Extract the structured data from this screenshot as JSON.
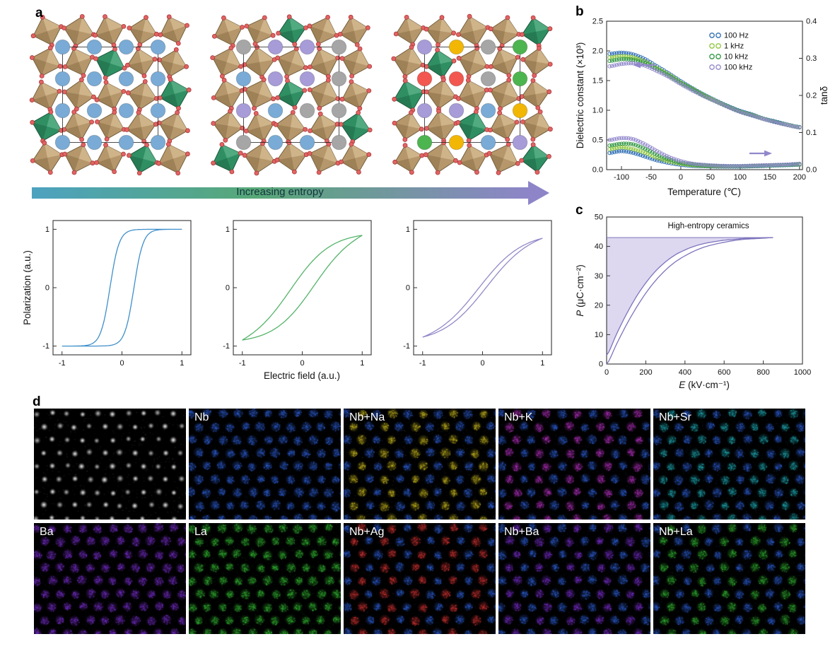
{
  "panel_a": {
    "label": "a",
    "arrow": {
      "label": "Increasing entropy",
      "gradient_start": "#4da2c0",
      "gradient_mid": "#57a877",
      "gradient_end": "#8d85c8"
    },
    "octahedron": {
      "body": "#b5976b",
      "light": "#d6bc92",
      "dark": "#8a6f45",
      "edge": "#6e5836",
      "green_body": "#2f8f63",
      "green_light": "#5bb088",
      "green_dark": "#1f6a47",
      "green_edge": "#174f35",
      "oxygen": "#e26363",
      "oxygen_edge": "#a83939",
      "cell_line": "#222222"
    },
    "structures": [
      {
        "name": "low-entropy",
        "cation_colors": [
          "#79abd6"
        ],
        "green_sites": [
          [
            1,
            2
          ],
          [
            3,
            0
          ],
          [
            2,
            4
          ],
          [
            4,
            3
          ]
        ]
      },
      {
        "name": "medium-entropy",
        "cation_colors": [
          "#79abd6",
          "#a79bd8",
          "#a6a6a6"
        ],
        "green_sites": [
          [
            0,
            2
          ],
          [
            2,
            2
          ],
          [
            4,
            0
          ],
          [
            3,
            4
          ]
        ]
      },
      {
        "name": "high-entropy",
        "cation_colors": [
          "#79abd6",
          "#a79bd8",
          "#a6a6a6",
          "#4db54f",
          "#f2584f",
          "#f2b705"
        ],
        "green_sites": [
          [
            1,
            1
          ],
          [
            0,
            4
          ],
          [
            3,
            2
          ],
          [
            4,
            4
          ],
          [
            2,
            0
          ]
        ]
      }
    ]
  },
  "panel_b": {
    "label": "b"
  },
  "panel_c": {
    "label": "c"
  },
  "panel_d": {
    "label": "d",
    "maps": [
      {
        "label": "",
        "type": "stem"
      },
      {
        "label": "Nb",
        "primary": "#2e5fd6"
      },
      {
        "label": "Nb+Na",
        "primary": "#2e5fd6",
        "secondary": "#c9b91f"
      },
      {
        "label": "Nb+K",
        "primary": "#2e5fd6",
        "secondary": "#b832c4"
      },
      {
        "label": "Nb+Sr",
        "primary": "#2e5fd6",
        "secondary": "#1faab4"
      },
      {
        "label": "Ba",
        "primary": "#7a2fd0"
      },
      {
        "label": "La",
        "primary": "#33b833"
      },
      {
        "label": "Nb+Ag",
        "primary": "#2e5fd6",
        "secondary": "#d63434"
      },
      {
        "label": "Nb+Ba",
        "primary": "#2e5fd6",
        "secondary": "#7a2fd0"
      },
      {
        "label": "Nb+La",
        "primary": "#2e5fd6",
        "secondary": "#33b833"
      }
    ]
  },
  "chart_data": [
    {
      "type": "line",
      "subtype": "hysteresis-loop",
      "name": "low-entropy P-E loop",
      "xlabel": "Electric field (a.u.)",
      "ylabel": "Polarization (a.u.)",
      "xlim": [
        -1.15,
        1.15
      ],
      "ylim": [
        -1.15,
        1.15
      ],
      "xticks": [
        "-1",
        "0",
        "1"
      ],
      "yticks": [
        "-1",
        "0",
        "1"
      ],
      "color": "#3f8fca",
      "model": {
        "Ps": 1.0,
        "k": 6.5,
        "Ec": 0.2
      }
    },
    {
      "type": "line",
      "subtype": "hysteresis-loop",
      "name": "medium-entropy P-E loop",
      "xlabel": "Electric field (a.u.)",
      "ylabel": "Polarization (a.u.)",
      "xlim": [
        -1.15,
        1.15
      ],
      "ylim": [
        -1.15,
        1.15
      ],
      "xticks": [
        "-1",
        "0",
        "1"
      ],
      "yticks": [
        "-1",
        "0",
        "1"
      ],
      "color": "#55b36a",
      "model": {
        "Ps": 0.95,
        "k": 1.5,
        "Ec": 0.18
      }
    },
    {
      "type": "line",
      "subtype": "hysteresis-loop",
      "name": "high-entropy P-E loop",
      "xlabel": "Electric field (a.u.)",
      "ylabel": "Polarization (a.u.)",
      "xlim": [
        -1.15,
        1.15
      ],
      "ylim": [
        -1.15,
        1.15
      ],
      "xticks": [
        "-1",
        "0",
        "1"
      ],
      "yticks": [
        "-1",
        "0",
        "1"
      ],
      "color": "#9489c9",
      "model": {
        "Ps": 0.95,
        "k": 1.35,
        "Ec": 0.06
      }
    },
    {
      "type": "line",
      "name": "dielectric-vs-temperature",
      "xlabel": "Temperature (℃)",
      "ylabel_left": "Dielectric constant (×10³)",
      "ylabel_right": "tanδ",
      "xlim": [
        -125,
        205
      ],
      "xticks": [
        "-100",
        "-50",
        "0",
        "50",
        "100",
        "150",
        "200"
      ],
      "ylim_left": [
        0,
        2.5
      ],
      "yticks_left": [
        "0.0",
        "0.5",
        "1.0",
        "1.5",
        "2.0",
        "2.5"
      ],
      "ylim_right": [
        0,
        0.4
      ],
      "yticks_right": [
        "0.0",
        "0.1",
        "0.2",
        "0.3",
        "0.4"
      ],
      "legend_position": "top-right",
      "arrow_color": "#9188cb",
      "temperatures": [
        -120,
        -100,
        -80,
        -60,
        -40,
        -20,
        0,
        20,
        40,
        60,
        80,
        100,
        120,
        140,
        160,
        180,
        200
      ],
      "series": [
        {
          "name": "100 Hz",
          "color": "#2e6db4",
          "dielectric": [
            1.95,
            1.97,
            1.94,
            1.86,
            1.74,
            1.62,
            1.49,
            1.37,
            1.26,
            1.16,
            1.07,
            0.99,
            0.93,
            0.86,
            0.81,
            0.76,
            0.72
          ],
          "tand": [
            0.045,
            0.05,
            0.045,
            0.035,
            0.025,
            0.018,
            0.013,
            0.01,
            0.009,
            0.008,
            0.008,
            0.008,
            0.009,
            0.01,
            0.011,
            0.012,
            0.013
          ]
        },
        {
          "name": "1 kHz",
          "color": "#8fc63f",
          "dielectric": [
            1.89,
            1.91,
            1.89,
            1.82,
            1.71,
            1.6,
            1.47,
            1.36,
            1.25,
            1.15,
            1.06,
            0.98,
            0.92,
            0.855,
            0.8,
            0.755,
            0.715
          ],
          "tand": [
            0.055,
            0.06,
            0.055,
            0.045,
            0.032,
            0.022,
            0.016,
            0.012,
            0.01,
            0.009,
            0.009,
            0.009,
            0.01,
            0.011,
            0.012,
            0.013,
            0.014
          ]
        },
        {
          "name": "10 kHz",
          "color": "#2f9641",
          "dielectric": [
            1.83,
            1.86,
            1.85,
            1.79,
            1.69,
            1.58,
            1.46,
            1.35,
            1.24,
            1.14,
            1.055,
            0.975,
            0.915,
            0.85,
            0.8,
            0.75,
            0.71
          ],
          "tand": [
            0.065,
            0.07,
            0.068,
            0.056,
            0.04,
            0.028,
            0.019,
            0.014,
            0.011,
            0.01,
            0.009,
            0.009,
            0.01,
            0.011,
            0.012,
            0.013,
            0.015
          ]
        },
        {
          "name": "100 kHz",
          "color": "#9188cb",
          "dielectric": [
            1.74,
            1.78,
            1.79,
            1.75,
            1.66,
            1.56,
            1.44,
            1.33,
            1.23,
            1.14,
            1.05,
            0.97,
            0.91,
            0.85,
            0.795,
            0.75,
            0.71
          ],
          "tand": [
            0.08,
            0.085,
            0.082,
            0.068,
            0.05,
            0.034,
            0.023,
            0.016,
            0.013,
            0.011,
            0.01,
            0.01,
            0.011,
            0.012,
            0.013,
            0.014,
            0.016
          ]
        }
      ]
    },
    {
      "type": "area",
      "name": "unipolar P-E loop",
      "annotation": "High-entropy ceramics",
      "xlabel_it": "E",
      "xlabel_rest": " (kV·cm⁻¹)",
      "ylabel_it": "P",
      "ylabel_rest": " (μC·cm⁻²)",
      "xlim": [
        0,
        1000
      ],
      "xticks": [
        "0",
        "200",
        "400",
        "600",
        "800",
        "1000"
      ],
      "ylim": [
        0,
        50
      ],
      "yticks": [
        "0",
        "10",
        "20",
        "30",
        "40",
        "50"
      ],
      "color": "#7e74bd",
      "fill": "#d9d4ee",
      "Pmax": 43,
      "E": [
        0,
        50,
        100,
        150,
        200,
        250,
        300,
        350,
        400,
        450,
        500,
        550,
        600,
        650,
        700,
        750,
        800,
        850
      ],
      "P_charge": [
        0,
        6.7,
        13.2,
        19,
        24.1,
        28.4,
        31.9,
        34.7,
        36.8,
        38.5,
        39.8,
        40.7,
        41.4,
        42,
        42.4,
        42.6,
        42.8,
        43
      ],
      "P_discharge": [
        3,
        10.1,
        16.8,
        22.7,
        27.6,
        31.6,
        34.7,
        37.1,
        38.8,
        40.1,
        41,
        41.6,
        42.1,
        42.4,
        42.7,
        42.8,
        42.9,
        43
      ]
    }
  ]
}
